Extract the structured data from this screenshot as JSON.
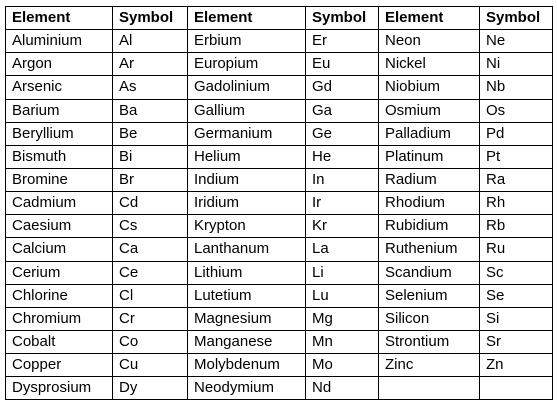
{
  "table": {
    "headers": [
      "Element",
      "Symbol",
      "Element",
      "Symbol",
      "Element",
      "Symbol"
    ],
    "rows": [
      [
        "Aluminium",
        "Al",
        "Erbium",
        "Er",
        "Neon",
        "Ne"
      ],
      [
        "Argon",
        "Ar",
        "Europium",
        "Eu",
        "Nickel",
        "Ni"
      ],
      [
        "Arsenic",
        "As",
        "Gadolinium",
        "Gd",
        "Niobium",
        "Nb"
      ],
      [
        "Barium",
        "Ba",
        "Gallium",
        "Ga",
        "Osmium",
        "Os"
      ],
      [
        "Beryllium",
        "Be",
        "Germanium",
        "Ge",
        "Palladium",
        "Pd"
      ],
      [
        "Bismuth",
        "Bi",
        "Helium",
        "He",
        "Platinum",
        "Pt"
      ],
      [
        "Bromine",
        "Br",
        "Indium",
        "In",
        "Radium",
        "Ra"
      ],
      [
        "Cadmium",
        "Cd",
        "Iridium",
        "Ir",
        "Rhodium",
        "Rh"
      ],
      [
        "Caesium",
        "Cs",
        "Krypton",
        "Kr",
        "Rubidium",
        "Rb"
      ],
      [
        "Calcium",
        "Ca",
        "Lanthanum",
        "La",
        "Ruthenium",
        "Ru"
      ],
      [
        "Cerium",
        "Ce",
        "Lithium",
        "Li",
        "Scandium",
        "Sc"
      ],
      [
        "Chlorine",
        "Cl",
        "Lutetium",
        "Lu",
        "Selenium",
        "Se"
      ],
      [
        "Chromium",
        "Cr",
        "Magnesium",
        "Mg",
        "Silicon",
        "Si"
      ],
      [
        "Cobalt",
        "Co",
        "Manganese",
        "Mn",
        "Strontium",
        "Sr"
      ],
      [
        "Copper",
        "Cu",
        "Molybdenum",
        "Mo",
        "Zinc",
        "Zn"
      ],
      [
        "Dysprosium",
        "Dy",
        "Neodymium",
        "Nd",
        "",
        ""
      ]
    ]
  }
}
